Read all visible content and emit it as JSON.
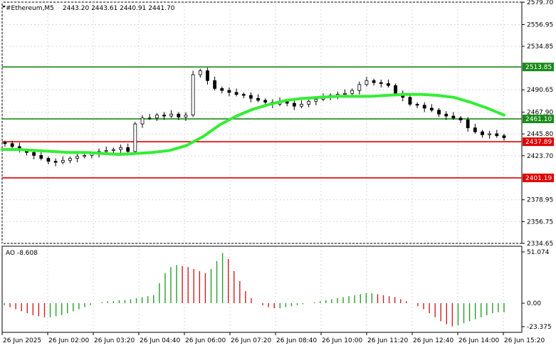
{
  "header": {
    "symbol": "#Ethereum,M5",
    "ohlc": "2443.20 2443.61 2440.91 2441.70",
    "indicator_label": "AO -8.608"
  },
  "colors": {
    "up_candle": "#000000",
    "ma_line": "#33ee33",
    "support_line": "#e00000",
    "resistance_line": "#1a8a1a",
    "ao_up": "#2a9d2a",
    "ao_down": "#d02020",
    "grid": "#d9d9d9"
  },
  "chart_data": [
    {
      "type": "candlestick",
      "title": "#Ethereum,M5",
      "y_ticks": [
        "2579.70",
        "2556.95",
        "2534.85",
        "2490.65",
        "2467.90",
        "2445.80",
        "2423.70",
        "2378.95",
        "2356.75",
        "2334.65"
      ],
      "ylim": [
        2334.65,
        2579.7
      ],
      "x_ticks": [
        "26 Jun 2025",
        "26 Jun 02:00",
        "26 Jun 03:20",
        "26 Jun 04:40",
        "26 Jun 06:00",
        "26 Jun 07:20",
        "26 Jun 08:40",
        "26 Jun 10:00",
        "26 Jun 11:20",
        "26 Jun 12:40",
        "26 Jun 14:00",
        "26 Jun 15:20"
      ],
      "close_series": [
        2436,
        2433,
        2429,
        2427,
        2424,
        2421,
        2418,
        2417,
        2419,
        2421,
        2423,
        2424,
        2426,
        2428,
        2429,
        2430,
        2432,
        2428,
        2456,
        2462,
        2462,
        2465,
        2464,
        2466,
        2463,
        2465,
        2506,
        2510,
        2500,
        2492,
        2490,
        2488,
        2486,
        2485,
        2482,
        2480,
        2478,
        2476,
        2479,
        2477,
        2474,
        2476,
        2479,
        2481,
        2483,
        2485,
        2486,
        2487,
        2490,
        2496,
        2500,
        2498,
        2497,
        2495,
        2487,
        2483,
        2476,
        2475,
        2472,
        2470,
        2466,
        2464,
        2462,
        2460,
        2452,
        2448,
        2445,
        2446,
        2444,
        2442
      ],
      "moving_average": [
        2430,
        2430,
        2429,
        2428,
        2427,
        2427,
        2426,
        2425,
        2426,
        2427,
        2429,
        2434,
        2443,
        2455,
        2464,
        2471,
        2476,
        2480,
        2482,
        2483,
        2484,
        2484,
        2484,
        2485,
        2486,
        2486,
        2485,
        2483,
        2478,
        2472,
        2465
      ],
      "horizontal_levels": [
        {
          "value": 2513.85,
          "label": "2513.85",
          "color": "#1a8a1a"
        },
        {
          "value": 2461.1,
          "label": "2461.10",
          "color": "#1a8a1a"
        },
        {
          "value": 2437.89,
          "label": "2437.89",
          "color": "#e00000"
        },
        {
          "value": 2401.19,
          "label": "2401.19",
          "color": "#e00000"
        }
      ],
      "grid": true
    },
    {
      "type": "bar",
      "title": "AO -8.608",
      "y_ticks": [
        "51.074",
        "0.00",
        "-23.375"
      ],
      "ylim": [
        -23.375,
        51.074
      ],
      "values": [
        -2,
        -4,
        -6,
        -8,
        -10,
        -12,
        -13,
        -14,
        -14,
        -13,
        -12,
        -10,
        -8,
        -6,
        -4,
        -2,
        0,
        1,
        2,
        2,
        3,
        3,
        4,
        5,
        6,
        7,
        8,
        20,
        30,
        36,
        38,
        37,
        36,
        34,
        32,
        30,
        34,
        42,
        50,
        44,
        32,
        22,
        12,
        5,
        0,
        -2,
        -4,
        -5,
        -5,
        -4,
        -3,
        -2,
        -1,
        0,
        1,
        2,
        3,
        4,
        5,
        6,
        7,
        8,
        9,
        10,
        10,
        9,
        8,
        7,
        6,
        4,
        2,
        0,
        -3,
        -6,
        -10,
        -14,
        -18,
        -21,
        -23,
        -22,
        -20,
        -18,
        -16,
        -14,
        -12,
        -10,
        -9,
        -9
      ]
    }
  ]
}
